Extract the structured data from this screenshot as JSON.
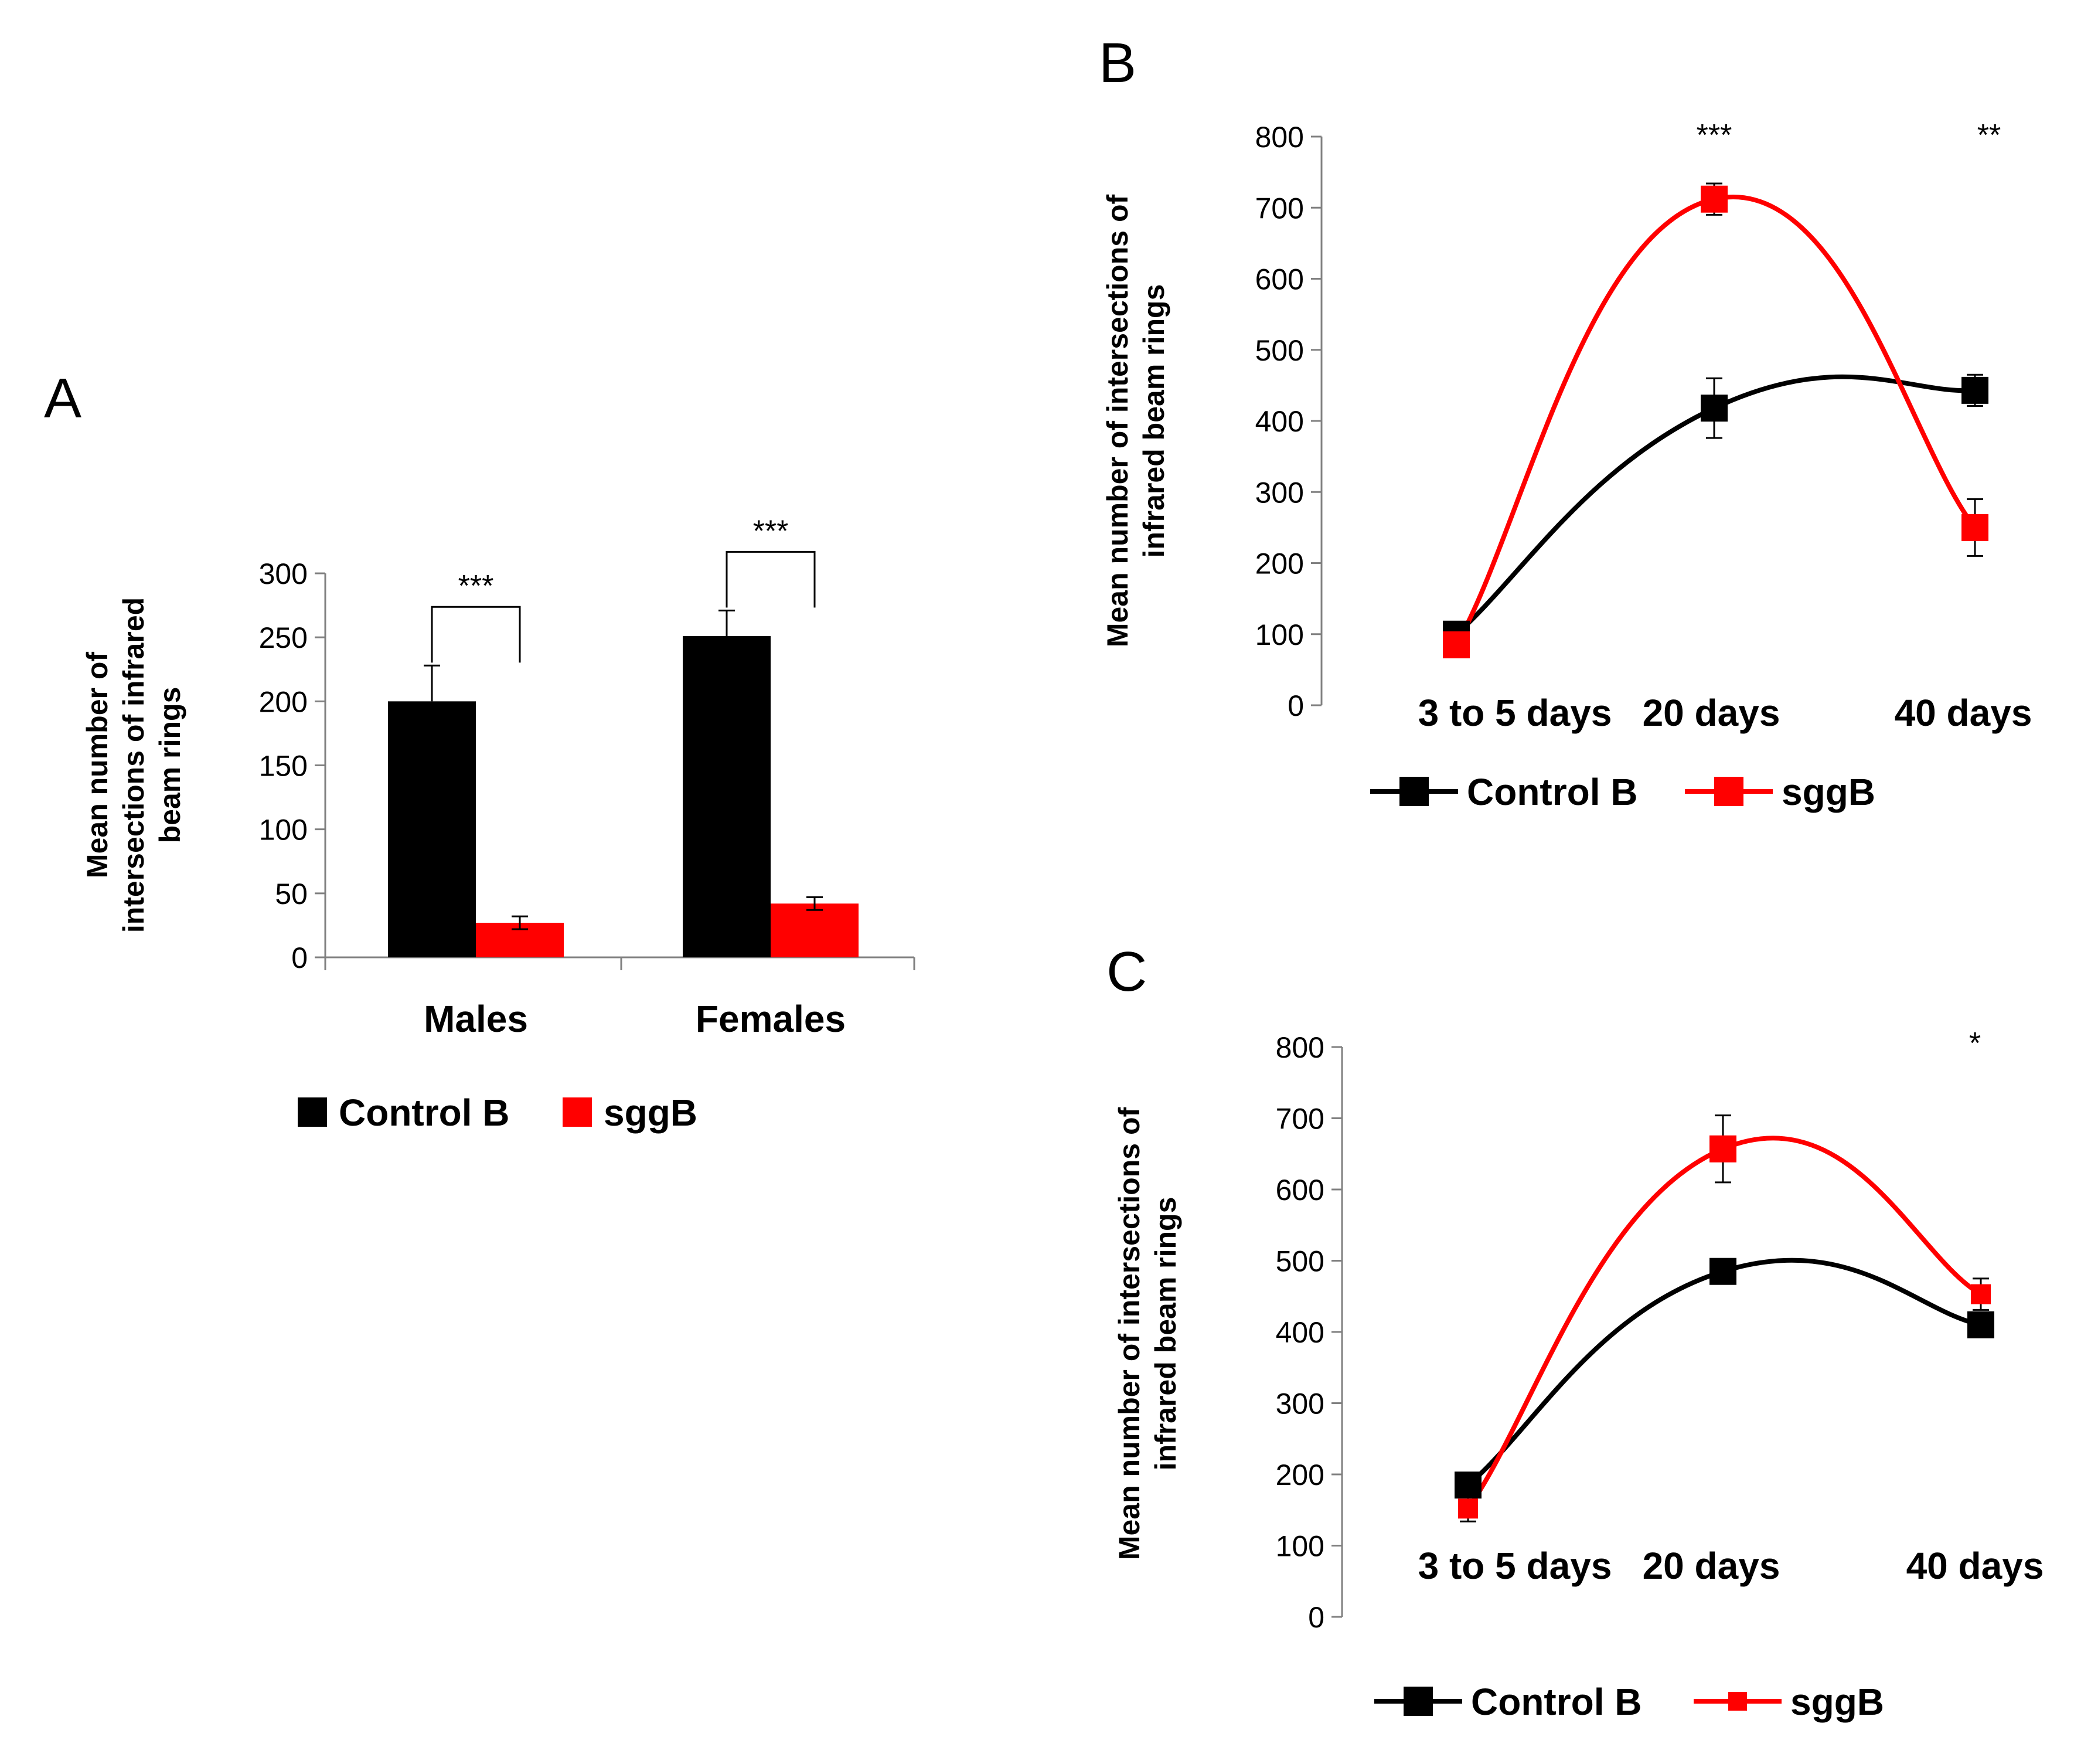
{
  "colors": {
    "control": "#000000",
    "sgg": "#ff0000",
    "axis": "#808080"
  },
  "chart_data": [
    {
      "panel": "A",
      "type": "bar",
      "ylabel": [
        "Mean number of",
        "intersections of infrared",
        "beam rings"
      ],
      "ylim": [
        0,
        300
      ],
      "yticks": [
        "0",
        "50",
        "100",
        "150",
        "200",
        "250",
        "300"
      ],
      "categories": [
        "Males",
        "Females"
      ],
      "series": [
        {
          "name": "Control B",
          "values": [
            200,
            251
          ],
          "errors": [
            28,
            20
          ]
        },
        {
          "name": "sggB",
          "values": [
            27,
            42
          ],
          "errors": [
            5,
            5
          ]
        }
      ],
      "significance": [
        "***",
        "***"
      ],
      "legend": [
        "Control B",
        "sggB"
      ]
    },
    {
      "panel": "B",
      "type": "line",
      "ylabel": [
        "Mean number of intersections of",
        "infrared beam rings"
      ],
      "ylim": [
        0,
        800
      ],
      "yticks": [
        "0",
        "100",
        "200",
        "300",
        "400",
        "500",
        "600",
        "700",
        "800"
      ],
      "categories": [
        "3 to 5 days",
        "20 days",
        "40 days"
      ],
      "series": [
        {
          "name": "Control B",
          "values": [
            100,
            418,
            443
          ],
          "errors": [
            8,
            42,
            22
          ]
        },
        {
          "name": "sggB",
          "values": [
            85,
            712,
            250
          ],
          "errors": [
            10,
            22,
            40
          ]
        }
      ],
      "significance": [
        "",
        "***",
        "**"
      ],
      "legend": [
        "Control B",
        "sggB"
      ]
    },
    {
      "panel": "C",
      "type": "line",
      "ylabel": [
        "Mean number of intersections of",
        "infrared beam rings"
      ],
      "ylim": [
        0,
        800
      ],
      "yticks": [
        "0",
        "100",
        "200",
        "300",
        "400",
        "500",
        "600",
        "700",
        "800"
      ],
      "categories": [
        "3 to 5 days",
        "20 days",
        "40 days"
      ],
      "series": [
        {
          "name": "Control B",
          "values": [
            185,
            485,
            410
          ],
          "errors": [
            8,
            10,
            10
          ]
        },
        {
          "name": "sggB",
          "values": [
            152,
            657,
            453
          ],
          "errors": [
            18,
            47,
            22
          ]
        }
      ],
      "significance": [
        "",
        "",
        "*"
      ],
      "legend": [
        "Control B",
        "sggB"
      ]
    }
  ]
}
